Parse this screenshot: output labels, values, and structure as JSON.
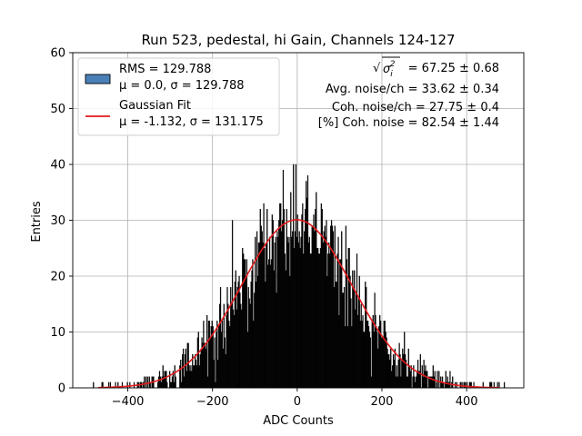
{
  "chart_data": {
    "type": "bar",
    "title": "Run 523, pedestal, hi Gain, Channels 124-127",
    "xlabel": "ADC Counts",
    "ylabel": "Entries",
    "xlim": [
      -530,
      535
    ],
    "ylim": [
      0,
      60
    ],
    "xticks": [
      -400,
      -200,
      0,
      200,
      400
    ],
    "yticks": [
      0,
      10,
      20,
      30,
      40,
      50,
      60
    ],
    "grid": true,
    "legend_position": "top-left",
    "histogram": {
      "bin_width": 2,
      "x_min": -484,
      "x_max": 490,
      "fill_color": "#000000",
      "edge_color": "#000000",
      "approx_peak_counts": 40,
      "approx_center": 0,
      "sigma": 129.788
    },
    "gaussian_fit": {
      "mu": -1.132,
      "sigma": 131.175,
      "amplitude": 30.1,
      "color": "#e41a1c"
    },
    "legend": [
      {
        "label_line1": "RMS = 129.788",
        "label_line2": "μ = 0.0, σ = 129.788",
        "swatch": "box",
        "color": "#4a80b8"
      },
      {
        "label_line1": "Gaussian Fit",
        "label_line2": "μ = -1.132, σ = 131.175",
        "swatch": "line",
        "color": "#e41a1c"
      }
    ],
    "annotations": {
      "sqrt_sigma": "= 67.25 ± 0.68",
      "avg_noise": "Avg. noise/ch = 33.62 ± 0.34",
      "coh_noise": "Coh. noise/ch = 27.75 ± 0.4",
      "pct_coh_noise": "[%] Coh. noise = 82.54 ± 1.44"
    }
  }
}
